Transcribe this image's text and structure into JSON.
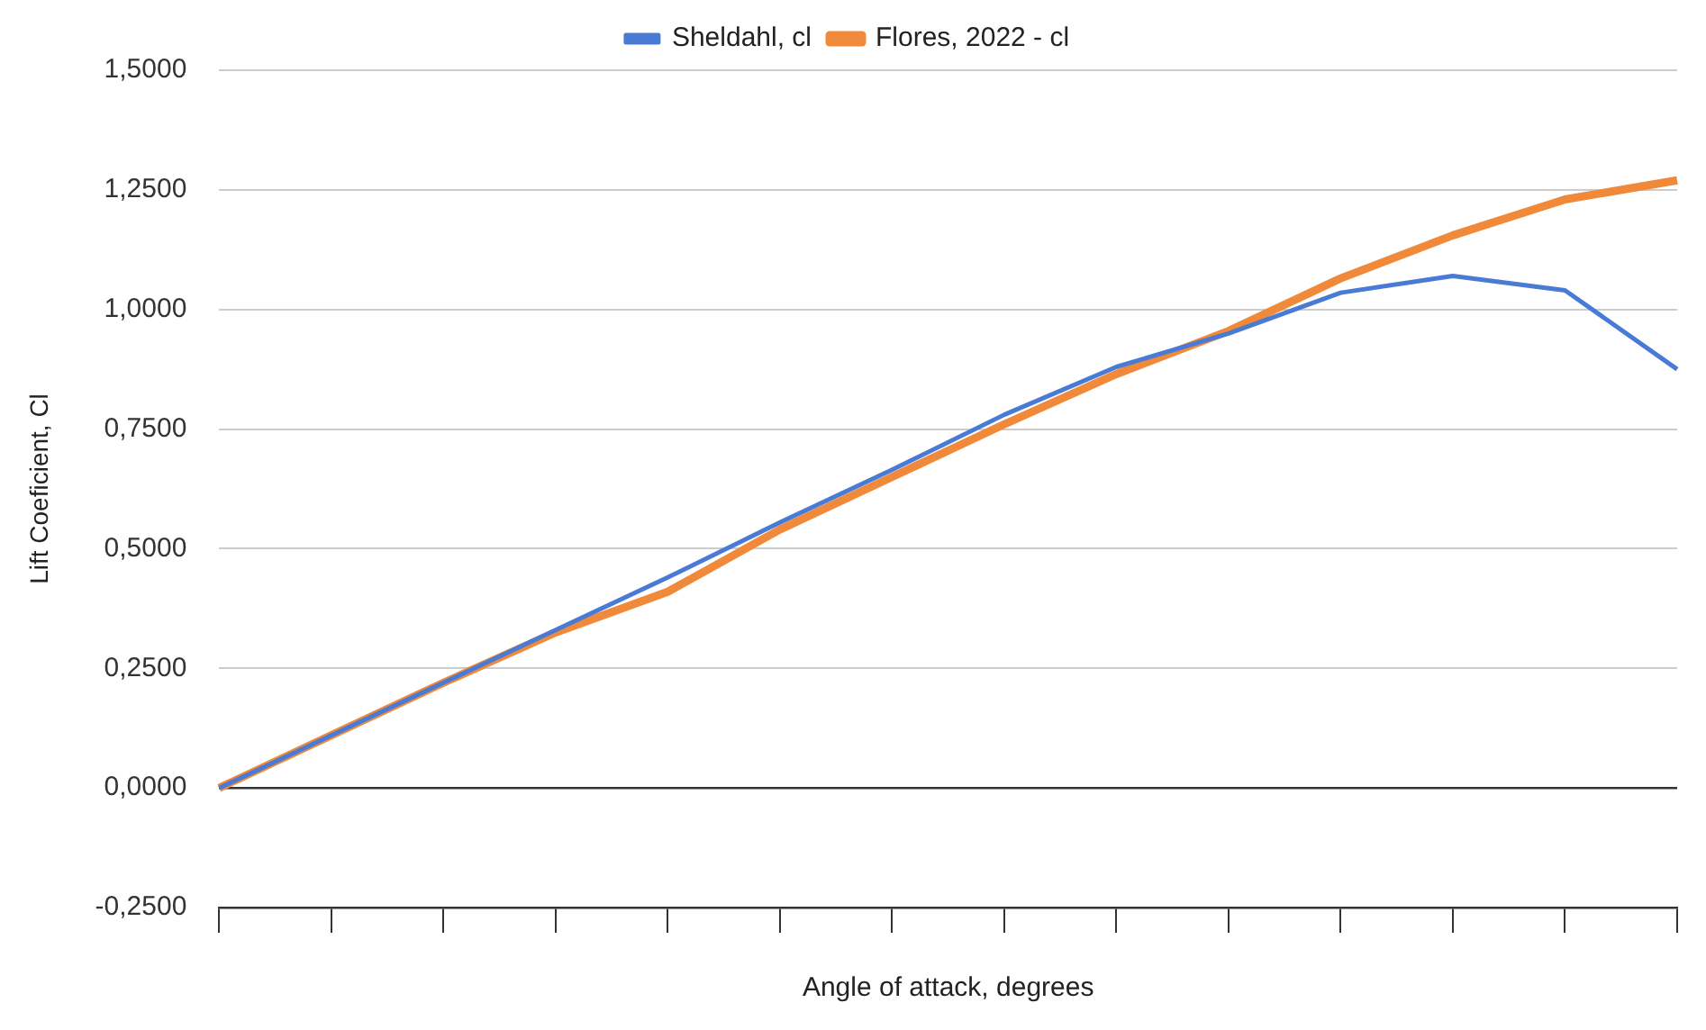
{
  "chart_data": {
    "type": "line",
    "xlabel": "Angle of attack, degrees",
    "ylabel": "Lift Coeficient, Cl",
    "categories": [
      null,
      null,
      null,
      null,
      null,
      null,
      null,
      null,
      null,
      null,
      null,
      null,
      null,
      null
    ],
    "series": [
      {
        "name": "Sheldahl, cl",
        "color": "#4a7bd4",
        "values": [
          0,
          0.11,
          0.22,
          0.33,
          0.44,
          0.555,
          0.665,
          0.78,
          0.88,
          0.95,
          1.035,
          1.07,
          1.04,
          0.875
        ]
      },
      {
        "name": "Flores, 2022 - cl",
        "color": "#f0893a",
        "values": [
          0,
          0.11,
          0.22,
          0.325,
          0.41,
          0.54,
          0.65,
          0.76,
          0.865,
          0.955,
          1.065,
          1.155,
          1.23,
          1.27
        ]
      }
    ],
    "ylim": [
      -0.25,
      1.5
    ],
    "yticks": [
      {
        "value": -0.25,
        "label": "-0,2500"
      },
      {
        "value": 0,
        "label": "0,0000"
      },
      {
        "value": 0.25,
        "label": "0,2500"
      },
      {
        "value": 0.5,
        "label": "0,5000"
      },
      {
        "value": 0.75,
        "label": "0,7500"
      },
      {
        "value": 1,
        "label": "1,0000"
      },
      {
        "value": 1.25,
        "label": "1,2500"
      },
      {
        "value": 1.5,
        "label": "1,5000"
      }
    ],
    "grid": "y",
    "legend": "top",
    "tick_labels": "y",
    "marker": "none",
    "line_style": "solid"
  }
}
